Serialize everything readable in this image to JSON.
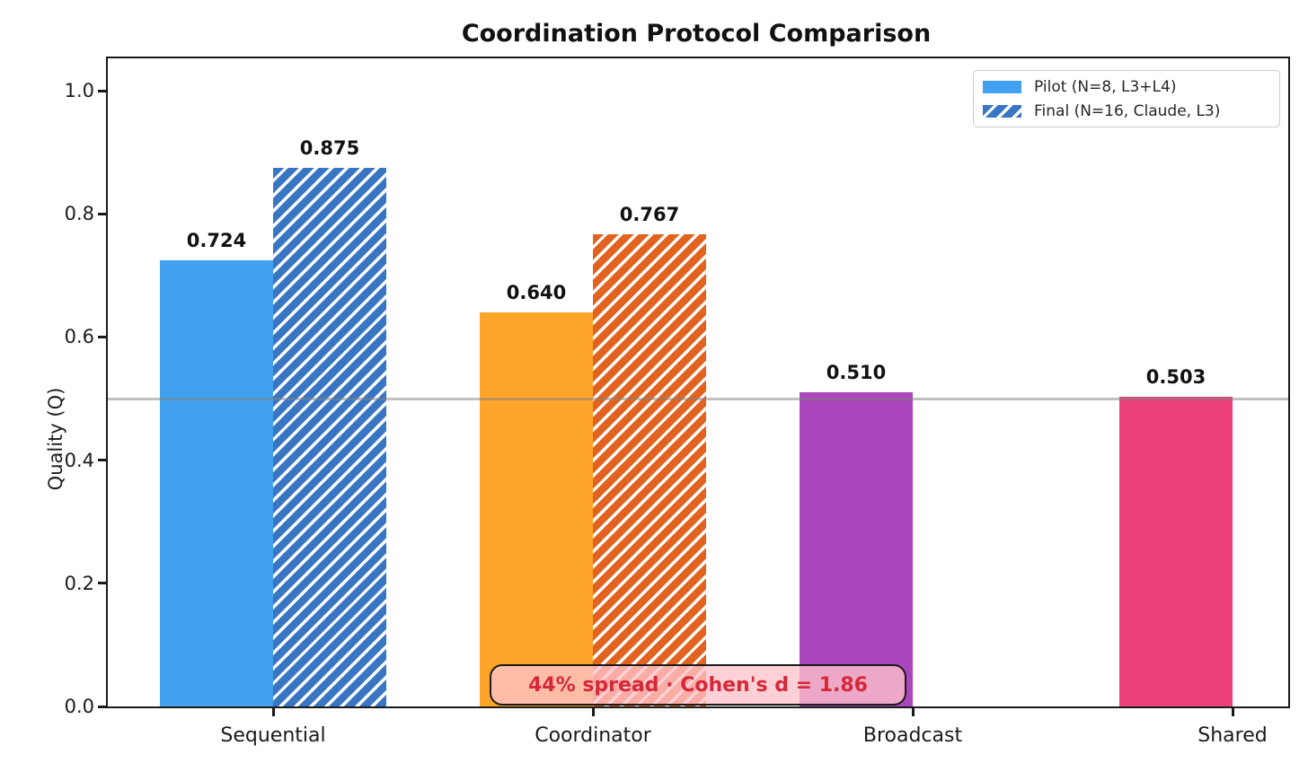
{
  "chart_data": {
    "type": "bar",
    "title": "Coordination Protocol Comparison",
    "ylabel": "Quality (Q)",
    "xlabel": "",
    "categories": [
      "Sequential",
      "Coordinator",
      "Broadcast",
      "Shared"
    ],
    "series": [
      {
        "name": "Pilot (N=8, L3+L4)",
        "hatch": false,
        "values": [
          0.724,
          0.64,
          0.51,
          0.503
        ],
        "colors": [
          "#42A0F0",
          "#FDA429",
          "#AB47BC",
          "#EC407A"
        ]
      },
      {
        "name": "Final (N=16, Claude, L3)",
        "hatch": true,
        "values": [
          0.875,
          0.767,
          null,
          null
        ],
        "colors": [
          "#3876C4",
          "#E2621F",
          null,
          null
        ]
      }
    ],
    "yticks": [
      "0.0",
      "0.2",
      "0.4",
      "0.6",
      "0.8",
      "1.0"
    ],
    "ylim": [
      0.0,
      1.05
    ],
    "grid": false,
    "reference_line": {
      "y": 0.5,
      "color": "#828282"
    },
    "hatch_stripe_color": "#ffffff",
    "annotation": {
      "text": "44% spread · Cohen's d = 1.86",
      "text_color": "#D62839",
      "bg_color": "rgba(255,195,202,0.78)"
    },
    "legend": {
      "position": "upper right",
      "entries": [
        {
          "label": "Pilot (N=8, L3+L4)",
          "color": "#42A0F0",
          "hatch": false
        },
        {
          "label": "Final (N=16, Claude, L3)",
          "color": "#3876C4",
          "hatch": true
        }
      ]
    }
  }
}
